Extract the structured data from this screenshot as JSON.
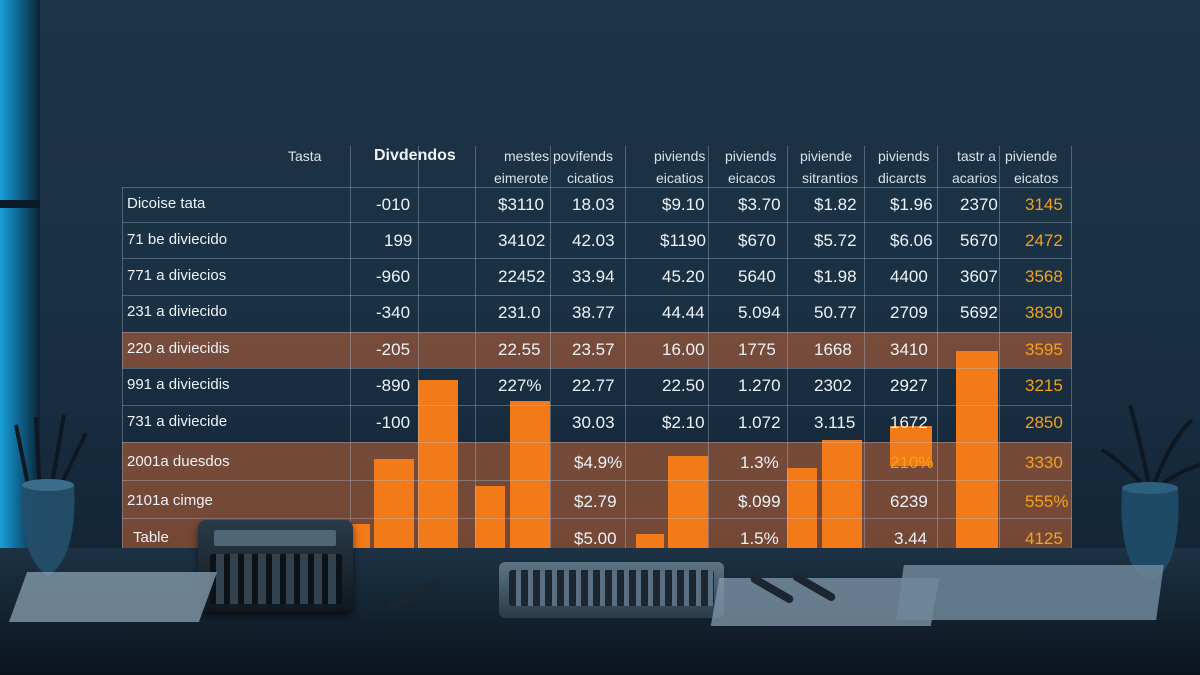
{
  "header": {
    "c0": "Tasta",
    "c1": "Divdendos",
    "c2": "mestes povifends",
    "c2b": "eimerote",
    "c3": "cicatios",
    "c4": "piviends",
    "c4b": "eicatios",
    "c5": "piviends",
    "c5b": "eicacos",
    "c6": "piviende",
    "c6b": "sitrantios",
    "c7": "piviends",
    "c7b": "dicarcts",
    "c8": "tastr a",
    "c8b": "acarios",
    "c9": "piviende",
    "c9b": "eicatos"
  },
  "rows": [
    [
      "Dicoise tata",
      "-010",
      "$3110",
      "18.03",
      "$9.10",
      "$3.70",
      "$1.82",
      "$1.96",
      "2370",
      "3145"
    ],
    [
      "71 be diviecido",
      "199",
      "34102",
      "42.03",
      "$1190",
      "$670",
      "$5.72",
      "$6.06",
      "5670",
      "2472"
    ],
    [
      "771 a diviecios",
      "-960",
      "22452",
      "33.94",
      "45.20",
      "5640",
      "$1.98",
      "4400",
      "3607",
      "3568"
    ],
    [
      "231 a diviecido",
      "-340",
      "231.0",
      "38.77",
      "44.44",
      "5.094",
      "50.77",
      "2709",
      "5692",
      "3830"
    ],
    [
      "220 a diviecidis",
      "-205",
      "22.55",
      "23.57",
      "16.00",
      "1775",
      "1668",
      "3410",
      "",
      "3595"
    ],
    [
      "991 a diviecidis",
      "-890",
      "227%",
      "22.77",
      "22.50",
      "1.270",
      "2302",
      "2927",
      "",
      "3215"
    ],
    [
      "731 a diviecide",
      "-100",
      "",
      "30.03",
      "$2.10",
      "1.072",
      "3.115",
      "1672",
      "",
      "2850"
    ],
    [
      "2001a duesdos",
      "",
      "",
      "$4.9%",
      "",
      "1.3%",
      "",
      "210%",
      "",
      "3330"
    ],
    [
      "2101a cimge",
      "",
      "",
      "$2.79",
      "",
      "$.099",
      "",
      "6239",
      "",
      "555%"
    ],
    [
      "Table",
      "",
      "",
      "$5.00",
      "",
      "1.5%",
      "",
      "3.44",
      "",
      "4125"
    ]
  ],
  "colors": {
    "accent": "#f5a21a",
    "bar": "#f27a18",
    "band": "#c46437",
    "background": "#1a3043"
  }
}
